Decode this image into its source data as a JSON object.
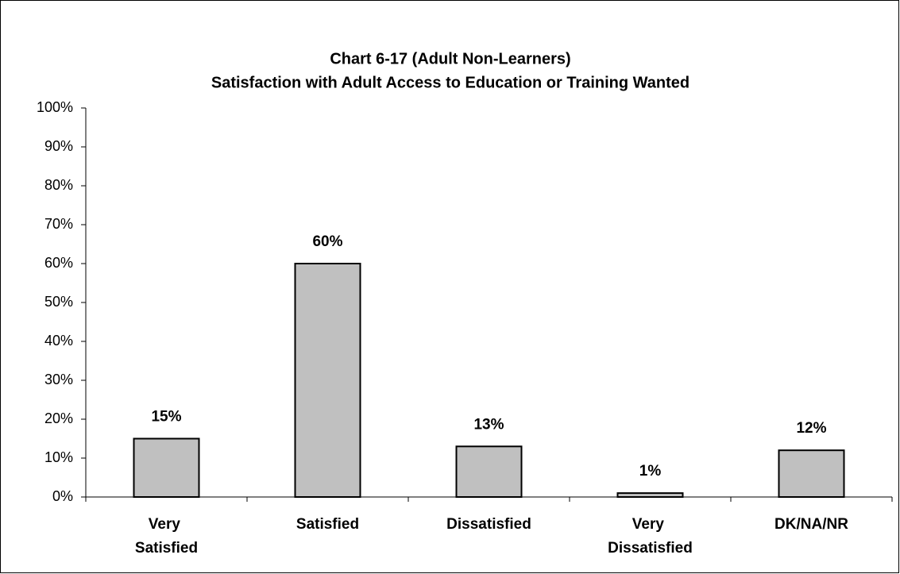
{
  "chart_data": {
    "type": "bar",
    "title": "Chart 6-17 (Adult Non-Learners)",
    "subtitle": "Satisfaction with Adult Access to Education or Training Wanted",
    "categories": [
      "Very Satisfied",
      "Satisfied",
      "Dissatisfied",
      "Very Dissatisfied",
      "DK/NA/NR"
    ],
    "values": [
      15,
      60,
      13,
      1,
      12
    ],
    "value_labels": [
      "15%",
      "60%",
      "13%",
      "1%",
      "12%"
    ],
    "color": "#c0c0c0",
    "ylim": [
      0,
      100
    ],
    "yticks": [
      {
        "value": 0,
        "label": "0%"
      },
      {
        "value": 10,
        "label": "10%"
      },
      {
        "value": 20,
        "label": "20%"
      },
      {
        "value": 30,
        "label": "30%"
      },
      {
        "value": 40,
        "label": "40%"
      },
      {
        "value": 50,
        "label": "50%"
      },
      {
        "value": 60,
        "label": "60%"
      },
      {
        "value": 70,
        "label": "70%"
      },
      {
        "value": 80,
        "label": "80%"
      },
      {
        "value": 90,
        "label": "90%"
      },
      {
        "value": 100,
        "label": "100%"
      }
    ],
    "grid": false
  }
}
